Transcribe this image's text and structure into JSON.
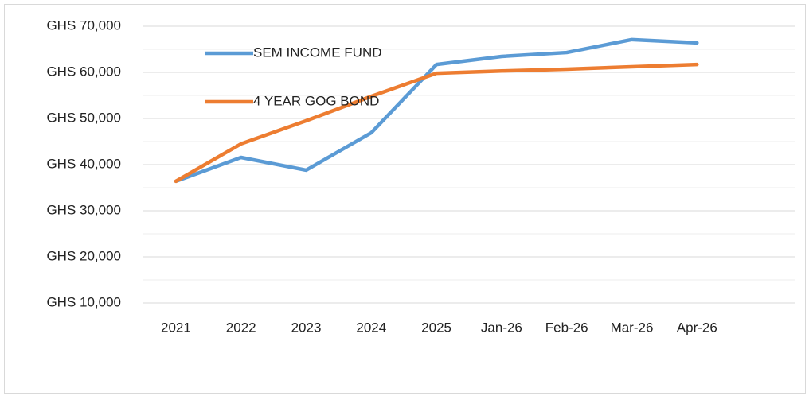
{
  "chart_data": {
    "type": "line",
    "categories": [
      "2021",
      "2022",
      "2023",
      "2024",
      "2025",
      "Jan-26",
      "Feb-26",
      "Mar-26",
      "Apr-26"
    ],
    "series": [
      {
        "name": "SEM INCOME FUND",
        "color": "#5b9bd5",
        "values": [
          36400,
          41550,
          38800,
          46900,
          61700,
          63450,
          64300,
          67100,
          66400
        ]
      },
      {
        "name": "4 YEAR GOG BOND",
        "color": "#ed7d31",
        "values": [
          36400,
          44500,
          49500,
          54800,
          59800,
          60300,
          60700,
          61200,
          61700
        ]
      }
    ],
    "ylim": [
      10000,
      70000
    ],
    "yticks": [
      {
        "value": 10000,
        "label": "GHS 10,000"
      },
      {
        "value": 20000,
        "label": "GHS 20,000"
      },
      {
        "value": 30000,
        "label": "GHS 30,000"
      },
      {
        "value": 40000,
        "label": "GHS 40,000"
      },
      {
        "value": 50000,
        "label": "GHS 50,000"
      },
      {
        "value": 60000,
        "label": "GHS 60,000"
      },
      {
        "value": 70000,
        "label": "GHS 70,000"
      }
    ],
    "minor_yticks": [
      15000,
      25000,
      35000,
      45000,
      55000,
      65000
    ],
    "grid": true,
    "legend": "top-left"
  }
}
